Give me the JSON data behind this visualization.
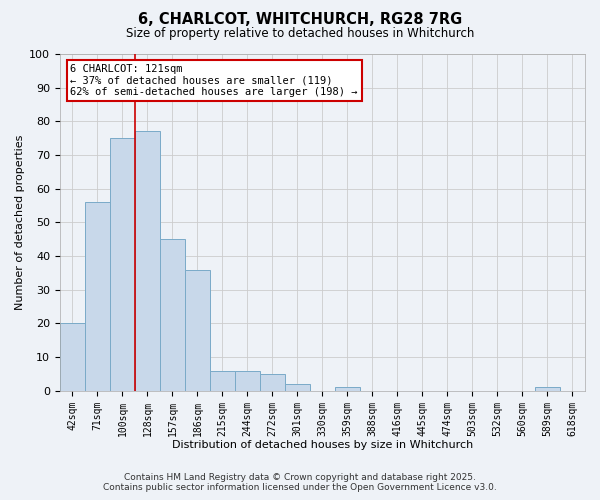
{
  "title": "6, CHARLCOT, WHITCHURCH, RG28 7RG",
  "subtitle": "Size of property relative to detached houses in Whitchurch",
  "xlabel": "Distribution of detached houses by size in Whitchurch",
  "ylabel": "Number of detached properties",
  "categories": [
    "42sqm",
    "71sqm",
    "100sqm",
    "128sqm",
    "157sqm",
    "186sqm",
    "215sqm",
    "244sqm",
    "272sqm",
    "301sqm",
    "330sqm",
    "359sqm",
    "388sqm",
    "416sqm",
    "445sqm",
    "474sqm",
    "503sqm",
    "532sqm",
    "560sqm",
    "589sqm",
    "618sqm"
  ],
  "values": [
    20,
    56,
    75,
    77,
    45,
    36,
    6,
    6,
    5,
    2,
    0,
    1,
    0,
    0,
    0,
    0,
    0,
    0,
    0,
    1,
    0
  ],
  "bar_color": "#c8d8ea",
  "bar_edge_color": "#7aaac8",
  "vline_x_idx": 2.5,
  "vline_color": "#cc0000",
  "annotation_text": "6 CHARLCOT: 121sqm\n← 37% of detached houses are smaller (119)\n62% of semi-detached houses are larger (198) →",
  "annotation_box_color": "#ffffff",
  "annotation_box_edge": "#cc0000",
  "ylim": [
    0,
    100
  ],
  "yticks": [
    0,
    10,
    20,
    30,
    40,
    50,
    60,
    70,
    80,
    90,
    100
  ],
  "grid_color": "#cccccc",
  "background_color": "#eef2f7",
  "footer_line1": "Contains HM Land Registry data © Crown copyright and database right 2025.",
  "footer_line2": "Contains public sector information licensed under the Open Government Licence v3.0."
}
